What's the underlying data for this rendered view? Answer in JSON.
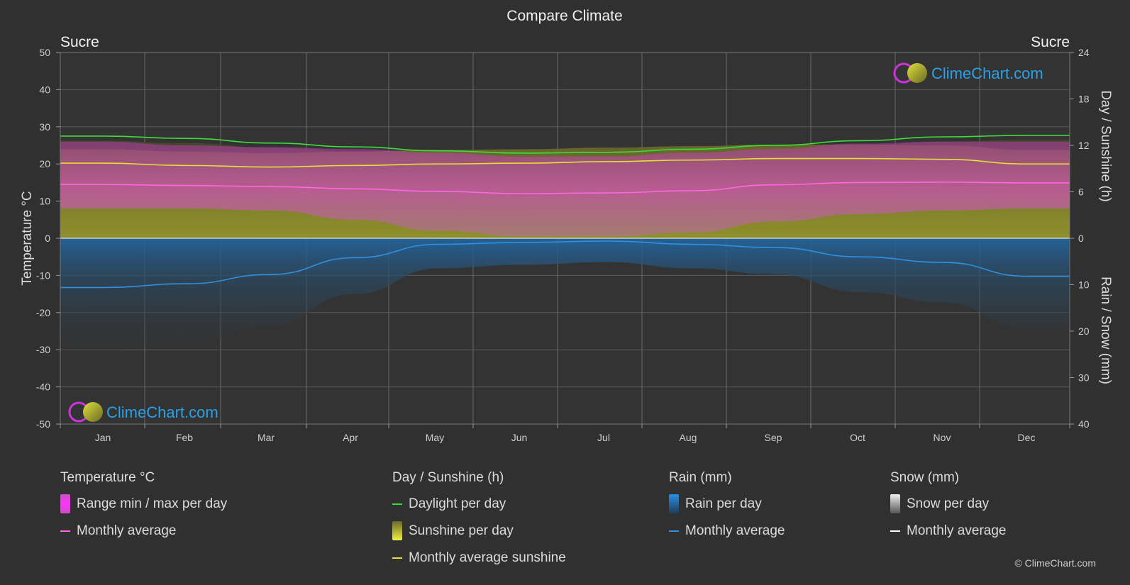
{
  "chart_data": {
    "type": "area",
    "title": "Compare Climate",
    "location_left": "Sucre",
    "location_right": "Sucre",
    "categories": [
      "Jan",
      "Feb",
      "Mar",
      "Apr",
      "May",
      "Jun",
      "Jul",
      "Aug",
      "Sep",
      "Oct",
      "Nov",
      "Dec"
    ],
    "y_left": {
      "label": "Temperature °C",
      "range": [
        -50,
        50
      ],
      "ticks": [
        "50",
        "40",
        "30",
        "20",
        "10",
        "0",
        "-10",
        "-20",
        "-30",
        "-40",
        "-50"
      ]
    },
    "y_right_top": {
      "label": "Day / Sunshine (h)",
      "range": [
        0,
        24
      ],
      "ticks": [
        "24",
        "18",
        "12",
        "6",
        "0"
      ]
    },
    "y_right_bottom": {
      "label": "Rain / Snow (mm)",
      "range": [
        0,
        40
      ],
      "ticks": [
        "10",
        "20",
        "30",
        "40"
      ]
    },
    "series": [
      {
        "name": "Daylight per day",
        "unit": "h",
        "color": "#3ddc3d",
        "values": [
          13.2,
          12.9,
          12.3,
          11.8,
          11.3,
          11.0,
          11.1,
          11.5,
          12.0,
          12.6,
          13.1,
          13.3
        ]
      },
      {
        "name": "Monthly average sunshine",
        "unit": "h",
        "color": "#e0e03a",
        "values": [
          9.7,
          9.4,
          9.2,
          9.4,
          9.6,
          9.7,
          9.9,
          10.1,
          10.3,
          10.3,
          10.2,
          9.6
        ]
      },
      {
        "name": "Monthly average",
        "group": "Temperature °C",
        "unit": "°C",
        "color": "#ff66e0",
        "values": [
          14.5,
          14.2,
          13.9,
          13.3,
          12.6,
          12.0,
          12.2,
          12.8,
          14.4,
          15.0,
          15.1,
          14.9
        ]
      },
      {
        "name": "Temperature max",
        "unit": "°C",
        "values": [
          26,
          25,
          24.5,
          24,
          23,
          22,
          22,
          23,
          24,
          25.5,
          26,
          26
        ]
      },
      {
        "name": "Temperature min",
        "unit": "°C",
        "values": [
          8,
          8,
          7.5,
          5,
          2,
          0.5,
          0.5,
          1.5,
          4.5,
          6.5,
          7.5,
          8
        ]
      },
      {
        "name": "Monthly average",
        "group": "Rain (mm)",
        "unit": "mm",
        "color": "#2f8fe0",
        "values": [
          10.6,
          9.8,
          7.8,
          4.2,
          1.3,
          0.9,
          0.6,
          1.3,
          2.0,
          4.0,
          5.2,
          8.2
        ]
      },
      {
        "name": "Monthly average",
        "group": "Snow (mm)",
        "unit": "mm",
        "color": "#ffffff",
        "values": [
          0,
          0,
          0,
          0,
          0,
          0,
          0,
          0,
          0,
          0,
          0,
          0
        ]
      }
    ]
  },
  "logo": {
    "text": "ClimeChart.com"
  },
  "legend": {
    "temperature": {
      "title": "Temperature °C",
      "items": [
        "Range min / max per day",
        "Monthly average"
      ]
    },
    "sunshine": {
      "title": "Day / Sunshine (h)",
      "items": [
        "Daylight per day",
        "Sunshine per day",
        "Monthly average sunshine"
      ]
    },
    "rain": {
      "title": "Rain (mm)",
      "items": [
        "Rain per day",
        "Monthly average"
      ]
    },
    "snow": {
      "title": "Snow (mm)",
      "items": [
        "Snow per day",
        "Monthly average"
      ]
    }
  },
  "colors": {
    "background": "#303030",
    "temperature_range": "#d63fc8",
    "sunshine": "#9a9a2a",
    "rain": "#1f6fb0"
  },
  "copyright": "© ClimeChart.com"
}
